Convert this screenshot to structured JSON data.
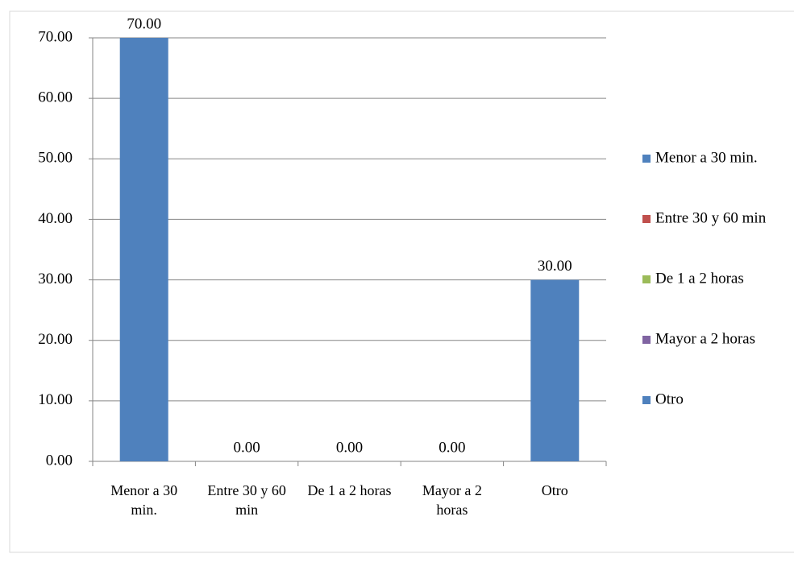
{
  "chart_data": {
    "type": "bar",
    "categories": [
      "Menor a 30 min.",
      "Entre 30 y 60 min",
      "De 1 a 2 horas",
      "Mayor a 2 horas",
      "Otro"
    ],
    "values": [
      70,
      0,
      0,
      0,
      30
    ],
    "value_labels": [
      "70.00",
      "0.00",
      "0.00",
      "0.00",
      "30.00"
    ],
    "colors": [
      "#4f81bd",
      "#c0504d",
      "#9bbb59",
      "#8064a2",
      "#4f81bd"
    ],
    "ylim": [
      0,
      70
    ],
    "yticks": [
      {
        "value": 0,
        "label": "0.00"
      },
      {
        "value": 10,
        "label": "10.00"
      },
      {
        "value": 20,
        "label": "20.00"
      },
      {
        "value": 30,
        "label": "30.00"
      },
      {
        "value": 40,
        "label": "40.00"
      },
      {
        "value": 50,
        "label": "50.00"
      },
      {
        "value": 60,
        "label": "60.00"
      },
      {
        "value": 70,
        "label": "70.00"
      }
    ],
    "grid": true,
    "legend": "right"
  }
}
